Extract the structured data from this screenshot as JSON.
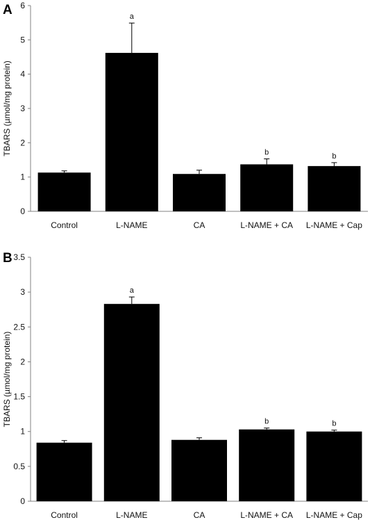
{
  "chart_data": [
    {
      "type": "bar",
      "panel_label": "A",
      "categories": [
        "Control",
        "L-NAME",
        "CA",
        "L-NAME + CA",
        "L-NAME + Cap"
      ],
      "values": [
        1.13,
        4.62,
        1.09,
        1.37,
        1.32
      ],
      "errors": [
        0.05,
        0.87,
        0.11,
        0.16,
        0.1
      ],
      "annotations": [
        "",
        "a",
        "",
        "b",
        "b"
      ],
      "ylabel": "TBARS (µmol/mg protein)",
      "ylim": [
        0,
        6
      ],
      "yticks": [
        "0",
        "1",
        "2",
        "3",
        "4",
        "5",
        "6"
      ],
      "bar_color": "#000000",
      "grid": false
    },
    {
      "type": "bar",
      "panel_label": "B",
      "categories": [
        "Control",
        "L-NAME",
        "CA",
        "L-NAME + CA",
        "L-NAME + Cap"
      ],
      "values": [
        0.84,
        2.83,
        0.88,
        1.03,
        1.0
      ],
      "errors": [
        0.03,
        0.1,
        0.03,
        0.02,
        0.02
      ],
      "annotations": [
        "",
        "a",
        "",
        "b",
        "b"
      ],
      "ylabel": "TBARS (µmol/mg protein)",
      "ylim": [
        0,
        3.5
      ],
      "yticks": [
        "0",
        "0.5",
        "1",
        "1.5",
        "2",
        "2.5",
        "3",
        "3.5"
      ],
      "bar_color": "#000000",
      "grid": false
    }
  ]
}
